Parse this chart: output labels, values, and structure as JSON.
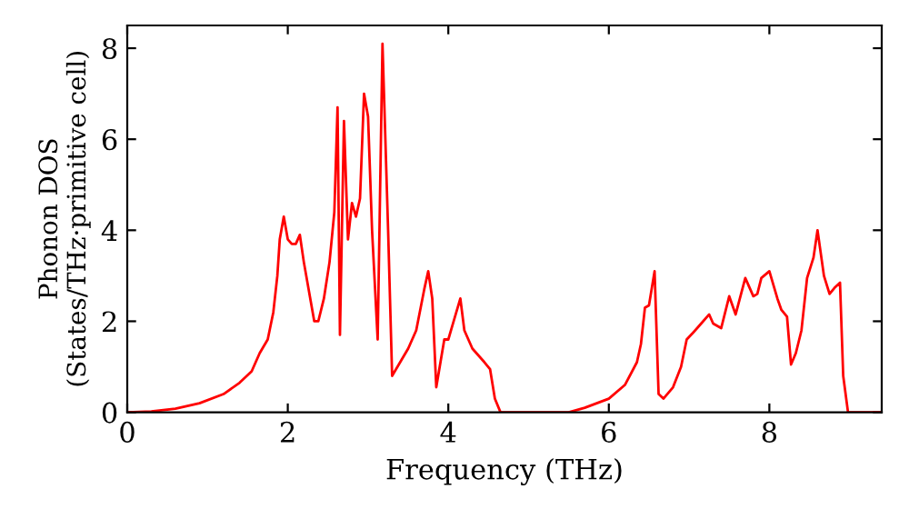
{
  "chart_data": {
    "type": "line",
    "xlabel": "Frequency (THz)",
    "ylabel": "Phonon DOS\n(States/THz·primitive cell)",
    "xlim": [
      0,
      9.4
    ],
    "ylim": [
      0,
      8.5
    ],
    "xticks": [
      0,
      2,
      4,
      6,
      8
    ],
    "yticks": [
      0,
      2,
      4,
      6,
      8
    ],
    "grid": false,
    "legend": false,
    "marker": "none",
    "line_style": "solid",
    "series": [
      {
        "color": "#ff0000",
        "x": [
          0,
          0.3,
          0.6,
          0.9,
          1.2,
          1.4,
          1.55,
          1.65,
          1.75,
          1.82,
          1.87,
          1.9,
          1.95,
          2.0,
          2.05,
          2.1,
          2.15,
          2.2,
          2.28,
          2.33,
          2.38,
          2.45,
          2.52,
          2.58,
          2.62,
          2.65,
          2.7,
          2.75,
          2.8,
          2.85,
          2.9,
          2.95,
          3.0,
          3.05,
          3.12,
          3.18,
          3.25,
          3.3,
          3.4,
          3.5,
          3.6,
          3.7,
          3.75,
          3.8,
          3.85,
          3.95,
          4.0,
          4.05,
          4.15,
          4.2,
          4.3,
          4.45,
          4.52,
          4.58,
          4.65,
          5.5,
          5.7,
          6.0,
          6.2,
          6.35,
          6.4,
          6.45,
          6.5,
          6.57,
          6.62,
          6.68,
          6.8,
          6.9,
          6.97,
          7.05,
          7.15,
          7.25,
          7.3,
          7.4,
          7.5,
          7.58,
          7.7,
          7.8,
          7.85,
          7.9,
          8.0,
          8.1,
          8.15,
          8.22,
          8.27,
          8.33,
          8.4,
          8.47,
          8.55,
          8.6,
          8.68,
          8.75,
          8.82,
          8.88,
          8.92,
          8.98,
          9.4
        ],
        "values": [
          0,
          0.02,
          0.08,
          0.2,
          0.4,
          0.65,
          0.9,
          1.3,
          1.6,
          2.2,
          3.0,
          3.8,
          4.3,
          3.8,
          3.7,
          3.7,
          3.9,
          3.3,
          2.5,
          2.0,
          2.0,
          2.5,
          3.3,
          4.4,
          6.7,
          1.7,
          6.4,
          3.8,
          4.6,
          4.3,
          4.7,
          7.0,
          6.5,
          4.0,
          1.6,
          8.1,
          4.0,
          0.8,
          1.1,
          1.4,
          1.8,
          2.7,
          3.1,
          2.5,
          0.55,
          1.6,
          1.6,
          1.9,
          2.5,
          1.8,
          1.4,
          1.1,
          0.95,
          0.3,
          0,
          0,
          0.1,
          0.3,
          0.6,
          1.1,
          1.5,
          2.3,
          2.35,
          3.1,
          0.4,
          0.3,
          0.55,
          1.0,
          1.6,
          1.75,
          1.95,
          2.15,
          1.95,
          1.85,
          2.55,
          2.15,
          2.95,
          2.55,
          2.6,
          2.95,
          3.1,
          2.5,
          2.25,
          2.1,
          1.05,
          1.3,
          1.8,
          2.95,
          3.4,
          4.0,
          3.0,
          2.6,
          2.75,
          2.85,
          0.8,
          0,
          0
        ]
      }
    ]
  }
}
